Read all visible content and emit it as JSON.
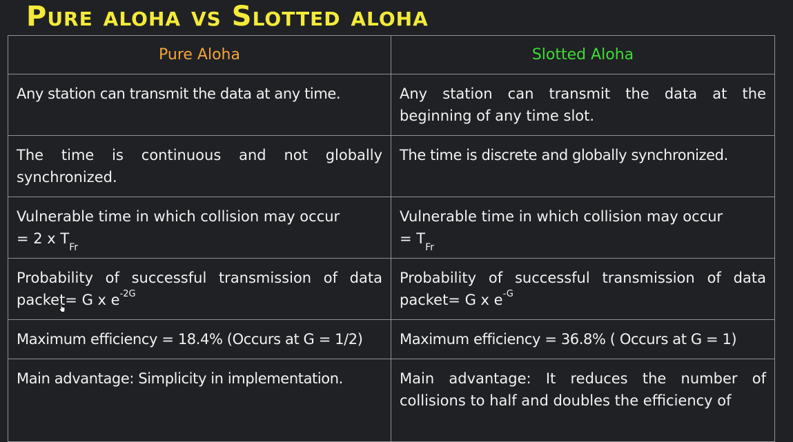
{
  "title": "Pure aloha vs Slotted aloha",
  "colors": {
    "title": "#f3ea3a",
    "pure_header": "#f5a33a",
    "slotted_header": "#3fdc36",
    "background": "#1f2124",
    "border": "#8f9194",
    "text": "#f2f2f2"
  },
  "table": {
    "headers": {
      "pure": "Pure Aloha",
      "slotted": "Slotted Aloha"
    },
    "rows": [
      {
        "pure": "Any station can transmit the data at any time.",
        "slotted": "Any station can transmit the data at the beginning of any time slot."
      },
      {
        "pure": "The time is continuous and not globally synchronized.",
        "slotted": "The time is discrete and globally synchronized."
      },
      {
        "pure_line1": "Vulnerable time in which collision may occur",
        "pure_line2": "= 2 x T",
        "pure_sub": "Fr",
        "slotted_line1": "Vulnerable time in which collision may occur",
        "slotted_line2": "= T",
        "slotted_sub": "Fr"
      },
      {
        "pure_text": "Probability of successful transmission of data packet= G x e",
        "pure_sup": "-2G",
        "slotted_text": "Probability of successful transmission of data packet= G x e",
        "slotted_sup": "-G"
      },
      {
        "pure": "Maximum efficiency = 18.4% (Occurs at G = 1/2)",
        "slotted": "Maximum efficiency = 36.8% ( Occurs at G = 1)"
      },
      {
        "pure": "Main advantage: Simplicity in implementation.",
        "slotted": "Main advantage: It reduces the number of collisions to half and doubles the efficiency of"
      }
    ]
  }
}
